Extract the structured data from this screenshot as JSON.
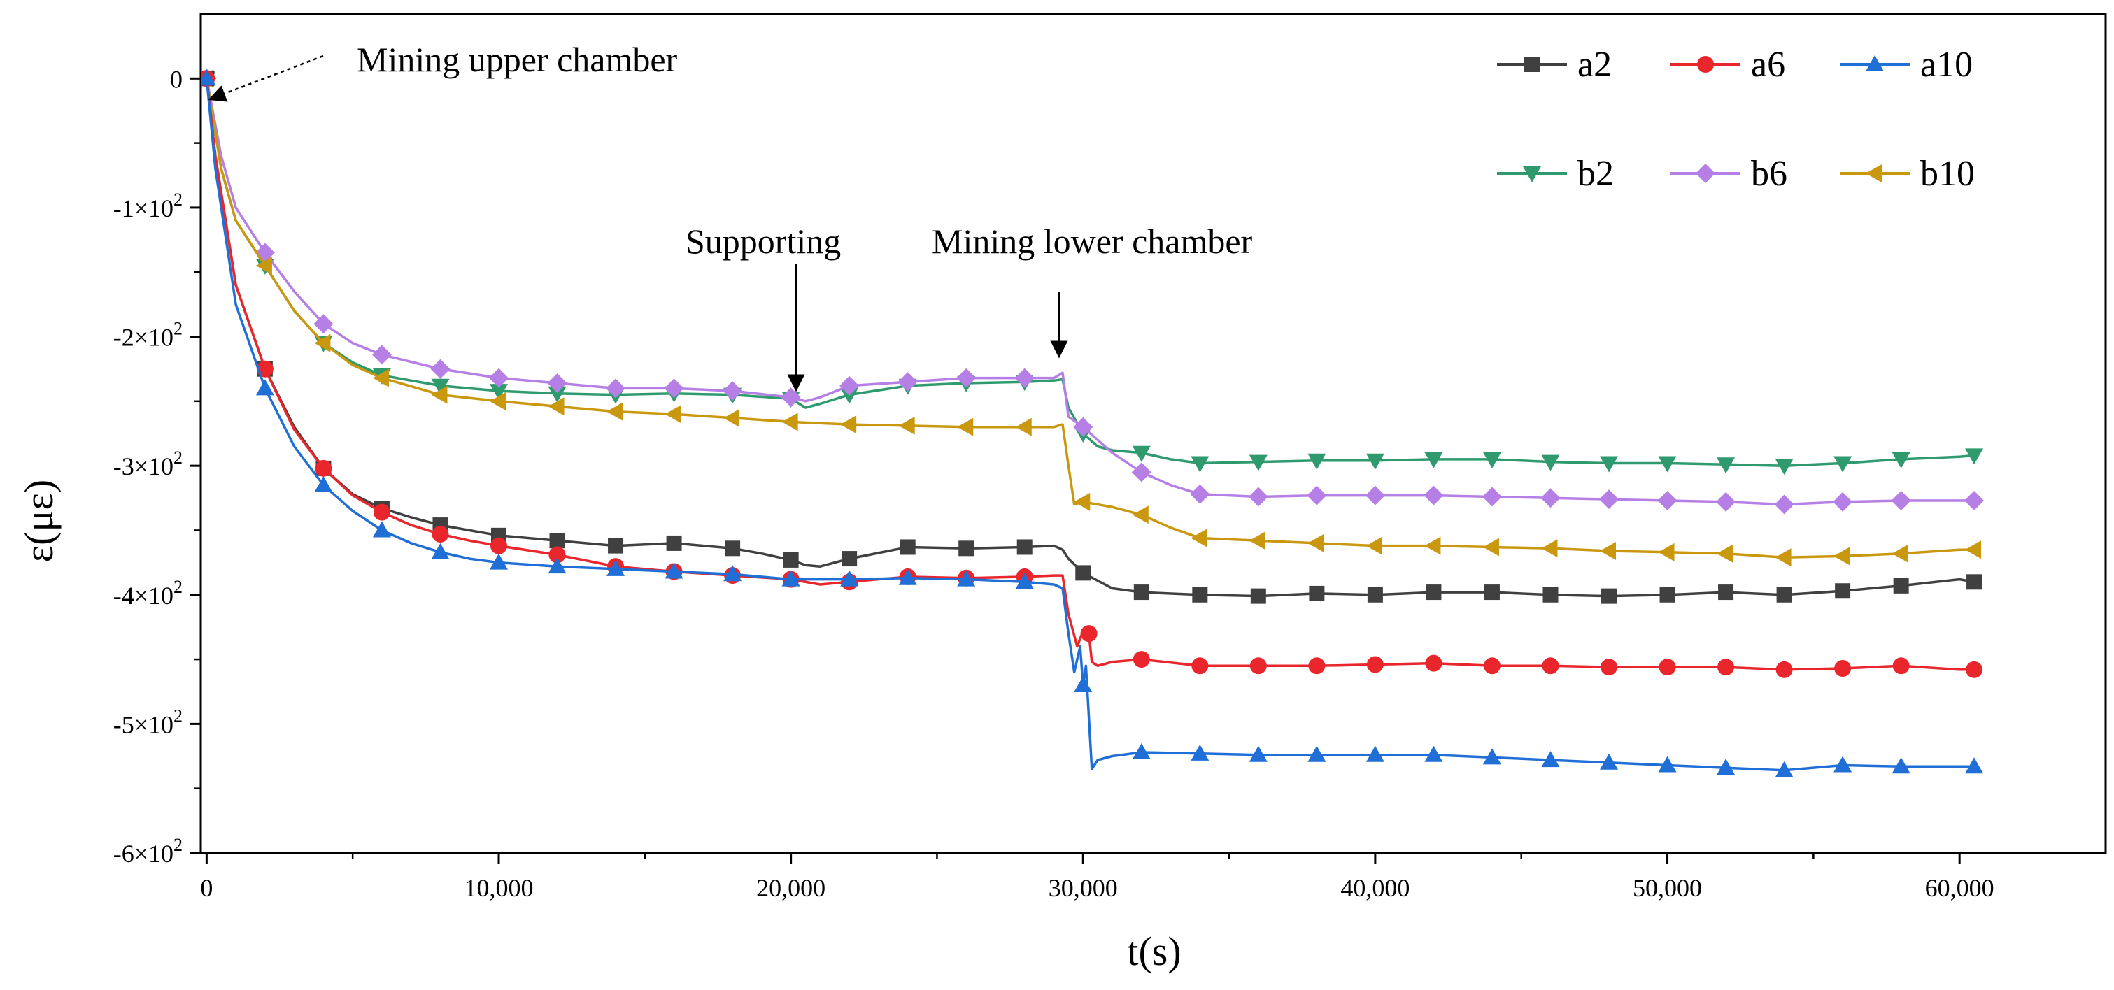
{
  "chart_data": {
    "type": "line",
    "xlabel": "t(s)",
    "ylabel": "ε(με)",
    "xlim": [
      -200,
      65000
    ],
    "ylim": [
      -600,
      50
    ],
    "x_ticks": [
      0,
      10000,
      20000,
      30000,
      40000,
      50000,
      60000
    ],
    "x_tick_labels": [
      "0",
      "10,000",
      "20,000",
      "30,000",
      "40,000",
      "50,000",
      "60,000"
    ],
    "y_ticks": [
      0,
      -100,
      -200,
      -300,
      -400,
      -500,
      -600
    ],
    "y_tick_labels": [
      {
        "base": "0",
        "exp": ""
      },
      {
        "base": "-1×10",
        "exp": "2"
      },
      {
        "base": "-2×10",
        "exp": "2"
      },
      {
        "base": "-3×10",
        "exp": "2"
      },
      {
        "base": "-4×10",
        "exp": "2"
      },
      {
        "base": "-5×10",
        "exp": "2"
      },
      {
        "base": "-6×10",
        "exp": "2"
      }
    ],
    "annotations": [
      {
        "text": "Mining upper chamber",
        "x": 200,
        "y": -18
      },
      {
        "text": "Supporting",
        "x": 20500,
        "y": -250
      },
      {
        "text": "Mining lower chamber",
        "x": 29300,
        "y": -232
      }
    ],
    "series": [
      {
        "name": "a2",
        "color": "#404040",
        "marker": "square",
        "x": [
          0,
          300,
          1000,
          2000,
          3000,
          4000,
          5000,
          6000,
          7000,
          8000,
          9000,
          10000,
          12000,
          14000,
          16000,
          18000,
          19000,
          20000,
          20500,
          21000,
          22000,
          24000,
          26000,
          28000,
          29000,
          29300,
          29500,
          30000,
          31000,
          32000,
          34000,
          36000,
          38000,
          40000,
          42000,
          44000,
          46000,
          48000,
          50000,
          52000,
          54000,
          56000,
          58000,
          60000,
          60500
        ],
        "y": [
          0,
          -60,
          -160,
          -225,
          -270,
          -302,
          -322,
          -333,
          -340,
          -346,
          -350,
          -354,
          -358,
          -362,
          -360,
          -364,
          -368,
          -373,
          -377,
          -378,
          -372,
          -363,
          -364,
          -363,
          -362,
          -365,
          -372,
          -383,
          -395,
          -398,
          -400,
          -401,
          -399,
          -400,
          -398,
          -398,
          -400,
          -401,
          -400,
          -398,
          -400,
          -397,
          -393,
          -388,
          -390
        ],
        "marker_x": [
          0,
          2000,
          4000,
          6000,
          8000,
          10000,
          12000,
          14000,
          16000,
          18000,
          20000,
          22000,
          24000,
          26000,
          28000,
          30000,
          32000,
          34000,
          36000,
          38000,
          40000,
          42000,
          44000,
          46000,
          48000,
          50000,
          52000,
          54000,
          56000,
          58000,
          60500
        ]
      },
      {
        "name": "a6",
        "color": "#e8262c",
        "marker": "circle",
        "x": [
          0,
          300,
          1000,
          2000,
          3000,
          4000,
          5000,
          6000,
          7000,
          8000,
          9000,
          10000,
          12000,
          14000,
          16000,
          18000,
          20000,
          21000,
          22000,
          24000,
          26000,
          28000,
          29000,
          29300,
          29500,
          29800,
          30000,
          30200,
          30300,
          30500,
          31000,
          32000,
          34000,
          36000,
          38000,
          40000,
          42000,
          44000,
          46000,
          48000,
          50000,
          52000,
          54000,
          56000,
          58000,
          60000,
          60500
        ],
        "y": [
          0,
          -60,
          -160,
          -225,
          -272,
          -302,
          -323,
          -336,
          -346,
          -353,
          -358,
          -362,
          -369,
          -378,
          -382,
          -385,
          -388,
          -392,
          -390,
          -386,
          -387,
          -386,
          -385,
          -385,
          -415,
          -440,
          -428,
          -430,
          -452,
          -455,
          -452,
          -450,
          -455,
          -455,
          -455,
          -454,
          -453,
          -455,
          -455,
          -456,
          -456,
          -456,
          -458,
          -457,
          -455,
          -458,
          -458
        ],
        "marker_x": [
          0,
          2000,
          4000,
          6000,
          8000,
          10000,
          12000,
          14000,
          16000,
          18000,
          20000,
          22000,
          24000,
          26000,
          28000,
          30200,
          32000,
          34000,
          36000,
          38000,
          40000,
          42000,
          44000,
          46000,
          48000,
          50000,
          52000,
          54000,
          56000,
          58000,
          60500
        ]
      },
      {
        "name": "a10",
        "color": "#1f6fd6",
        "marker": "triangle-up",
        "x": [
          0,
          300,
          1000,
          2000,
          3000,
          4000,
          5000,
          6000,
          7000,
          8000,
          9000,
          10000,
          12000,
          14000,
          16000,
          18000,
          20000,
          22000,
          24000,
          26000,
          28000,
          29000,
          29300,
          29500,
          29700,
          29900,
          30000,
          30100,
          30200,
          30300,
          30500,
          31000,
          32000,
          34000,
          36000,
          38000,
          40000,
          42000,
          44000,
          46000,
          48000,
          50000,
          52000,
          54000,
          56000,
          58000,
          60000,
          60500
        ],
        "y": [
          0,
          -70,
          -175,
          -240,
          -285,
          -315,
          -335,
          -350,
          -360,
          -367,
          -372,
          -375,
          -378,
          -380,
          -382,
          -384,
          -388,
          -388,
          -387,
          -388,
          -390,
          -392,
          -395,
          -430,
          -460,
          -440,
          -470,
          -455,
          -495,
          -535,
          -528,
          -525,
          -522,
          -523,
          -524,
          -524,
          -524,
          -524,
          -526,
          -528,
          -530,
          -532,
          -534,
          -536,
          -532,
          -533,
          -533,
          -533
        ],
        "marker_x": [
          0,
          2000,
          4000,
          6000,
          8000,
          10000,
          12000,
          14000,
          16000,
          18000,
          20000,
          22000,
          24000,
          26000,
          28000,
          30000,
          32000,
          34000,
          36000,
          38000,
          40000,
          42000,
          44000,
          46000,
          48000,
          50000,
          52000,
          54000,
          56000,
          58000,
          60500
        ]
      },
      {
        "name": "b2",
        "color": "#2e9a6e",
        "marker": "triangle-down",
        "x": [
          0,
          500,
          1000,
          2000,
          3000,
          4000,
          5000,
          6000,
          8000,
          10000,
          12000,
          14000,
          16000,
          18000,
          20000,
          20500,
          21000,
          22000,
          24000,
          26000,
          28000,
          29000,
          29300,
          29500,
          30000,
          30500,
          31000,
          32000,
          33000,
          34000,
          36000,
          38000,
          40000,
          42000,
          44000,
          46000,
          48000,
          50000,
          52000,
          54000,
          56000,
          58000,
          60000,
          60500
        ],
        "y": [
          0,
          -70,
          -110,
          -145,
          -180,
          -205,
          -220,
          -230,
          -238,
          -242,
          -244,
          -245,
          -244,
          -245,
          -248,
          -255,
          -252,
          -245,
          -238,
          -236,
          -235,
          -234,
          -233,
          -255,
          -275,
          -285,
          -288,
          -290,
          -295,
          -298,
          -297,
          -296,
          -296,
          -295,
          -295,
          -297,
          -298,
          -298,
          -299,
          -300,
          -298,
          -295,
          -293,
          -292
        ],
        "marker_x": [
          0,
          2000,
          4000,
          6000,
          8000,
          10000,
          12000,
          14000,
          16000,
          18000,
          20000,
          22000,
          24000,
          26000,
          28000,
          30000,
          32000,
          34000,
          36000,
          38000,
          40000,
          42000,
          44000,
          46000,
          48000,
          50000,
          52000,
          54000,
          56000,
          58000,
          60500
        ]
      },
      {
        "name": "b6",
        "color": "#b57fe6",
        "marker": "diamond",
        "x": [
          0,
          500,
          1000,
          2000,
          3000,
          4000,
          5000,
          6000,
          8000,
          10000,
          12000,
          14000,
          16000,
          18000,
          20000,
          20500,
          21000,
          22000,
          24000,
          26000,
          28000,
          29000,
          29300,
          29500,
          30000,
          31000,
          32000,
          33000,
          34000,
          36000,
          38000,
          40000,
          42000,
          44000,
          46000,
          48000,
          50000,
          52000,
          54000,
          56000,
          58000,
          60000,
          60500
        ],
        "y": [
          0,
          -60,
          -100,
          -135,
          -165,
          -190,
          -205,
          -214,
          -225,
          -232,
          -236,
          -240,
          -240,
          -242,
          -247,
          -250,
          -247,
          -238,
          -235,
          -232,
          -232,
          -232,
          -228,
          -262,
          -270,
          -290,
          -305,
          -315,
          -322,
          -324,
          -323,
          -323,
          -323,
          -324,
          -325,
          -326,
          -327,
          -328,
          -330,
          -328,
          -327,
          -327,
          -327
        ],
        "marker_x": [
          0,
          2000,
          4000,
          6000,
          8000,
          10000,
          12000,
          14000,
          16000,
          18000,
          20000,
          22000,
          24000,
          26000,
          28000,
          30000,
          32000,
          34000,
          36000,
          38000,
          40000,
          42000,
          44000,
          46000,
          48000,
          50000,
          52000,
          54000,
          56000,
          58000,
          60500
        ]
      },
      {
        "name": "b10",
        "color": "#c9980e",
        "marker": "triangle-left",
        "x": [
          0,
          500,
          1000,
          2000,
          3000,
          4000,
          5000,
          6000,
          8000,
          10000,
          12000,
          14000,
          16000,
          18000,
          20000,
          22000,
          24000,
          26000,
          28000,
          29000,
          29300,
          29500,
          29700,
          30000,
          31000,
          32000,
          33000,
          34000,
          36000,
          38000,
          40000,
          42000,
          44000,
          46000,
          48000,
          50000,
          52000,
          54000,
          56000,
          58000,
          60000,
          60500
        ],
        "y": [
          0,
          -70,
          -110,
          -145,
          -180,
          -205,
          -222,
          -232,
          -245,
          -250,
          -254,
          -258,
          -260,
          -263,
          -266,
          -268,
          -269,
          -270,
          -270,
          -270,
          -268,
          -300,
          -330,
          -328,
          -332,
          -338,
          -348,
          -356,
          -358,
          -360,
          -362,
          -362,
          -363,
          -364,
          -366,
          -367,
          -368,
          -371,
          -370,
          -368,
          -365,
          -365
        ],
        "marker_x": [
          0,
          2000,
          4000,
          6000,
          8000,
          10000,
          12000,
          14000,
          16000,
          18000,
          20000,
          22000,
          24000,
          26000,
          28000,
          30000,
          32000,
          34000,
          36000,
          38000,
          40000,
          42000,
          44000,
          46000,
          48000,
          50000,
          52000,
          54000,
          56000,
          58000,
          60500
        ]
      }
    ],
    "legend": {
      "location": "top-right",
      "columns": 3
    }
  }
}
